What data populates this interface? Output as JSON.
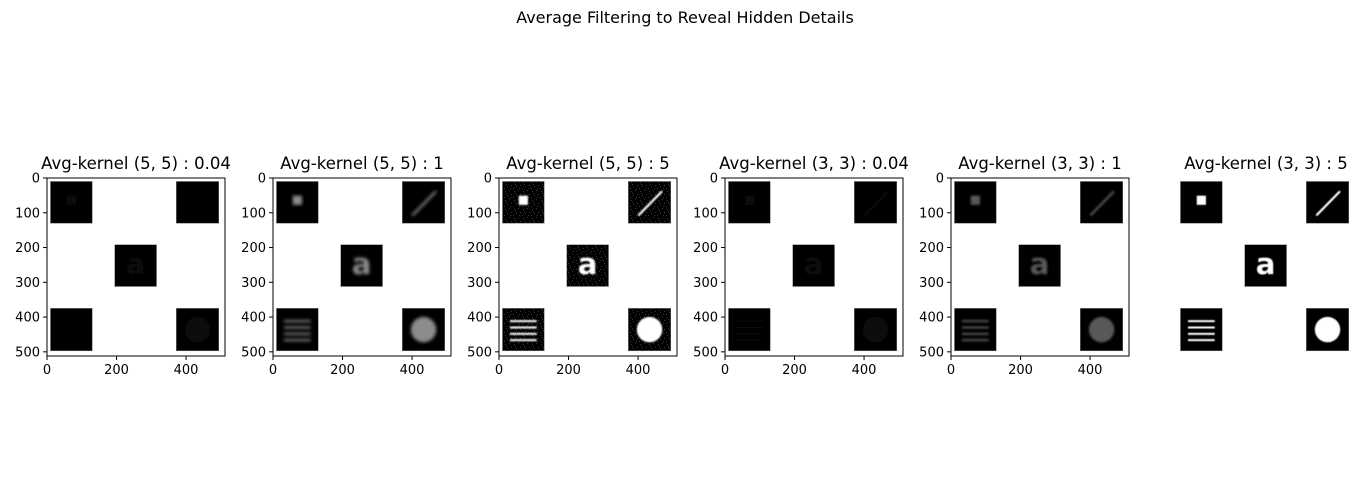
{
  "figure": {
    "suptitle": "Average Filtering to Reveal Hidden Details"
  },
  "chart_data": {
    "type": "heatmap",
    "description_kind": "image_grid",
    "image_extent": [
      0,
      512
    ],
    "xticks": [
      0,
      200,
      400
    ],
    "yticks": [
      0,
      100,
      200,
      300,
      400,
      500
    ],
    "colormap": "gray",
    "background": "#ffffff",
    "panels": [
      {
        "title": "Avg-kernel (5, 5) : 0.04",
        "kernel": 5,
        "gain": 0.04,
        "axes_visible": true,
        "tile_color": "#000000",
        "feature_level": 0.06,
        "blur": 2.2,
        "noise": false
      },
      {
        "title": "Avg-kernel (5, 5) : 1",
        "kernel": 5,
        "gain": 1,
        "axes_visible": true,
        "tile_color": "#000000",
        "feature_level": 0.55,
        "blur": 1.6,
        "noise": false
      },
      {
        "title": "Avg-kernel (5, 5) : 5",
        "kernel": 5,
        "gain": 5,
        "axes_visible": true,
        "tile_color": "#000000",
        "feature_level": 1.0,
        "blur": 0.8,
        "noise": true
      },
      {
        "title": "Avg-kernel (3, 3) : 0.04",
        "kernel": 3,
        "gain": 0.04,
        "axes_visible": true,
        "tile_color": "#000000",
        "feature_level": 0.05,
        "blur": 1.4,
        "noise": false
      },
      {
        "title": "Avg-kernel (3, 3) : 1",
        "kernel": 3,
        "gain": 1,
        "axes_visible": true,
        "tile_color": "#000000",
        "feature_level": 0.35,
        "blur": 1.0,
        "noise": false
      },
      {
        "title": "Avg-kernel (3, 3) : 5",
        "kernel": 3,
        "gain": 5,
        "axes_visible": false,
        "tile_color": "#000000",
        "feature_level": 1.0,
        "blur": 0.5,
        "noise": false
      }
    ],
    "tiles": [
      {
        "name": "square-tile",
        "x": [
          10,
          130
        ],
        "y": [
          10,
          130
        ],
        "feature": "square"
      },
      {
        "name": "diagonal-line-tile",
        "x": [
          372,
          494
        ],
        "y": [
          10,
          130
        ],
        "feature": "line"
      },
      {
        "name": "letter-a-tile",
        "x": [
          195,
          315
        ],
        "y": [
          192,
          312
        ],
        "feature": "letter",
        "text": "a"
      },
      {
        "name": "horizontal-lines-tile",
        "x": [
          10,
          130
        ],
        "y": [
          375,
          497
        ],
        "feature": "lines"
      },
      {
        "name": "circle-tile",
        "x": [
          372,
          494
        ],
        "y": [
          375,
          497
        ],
        "feature": "circle"
      }
    ]
  }
}
